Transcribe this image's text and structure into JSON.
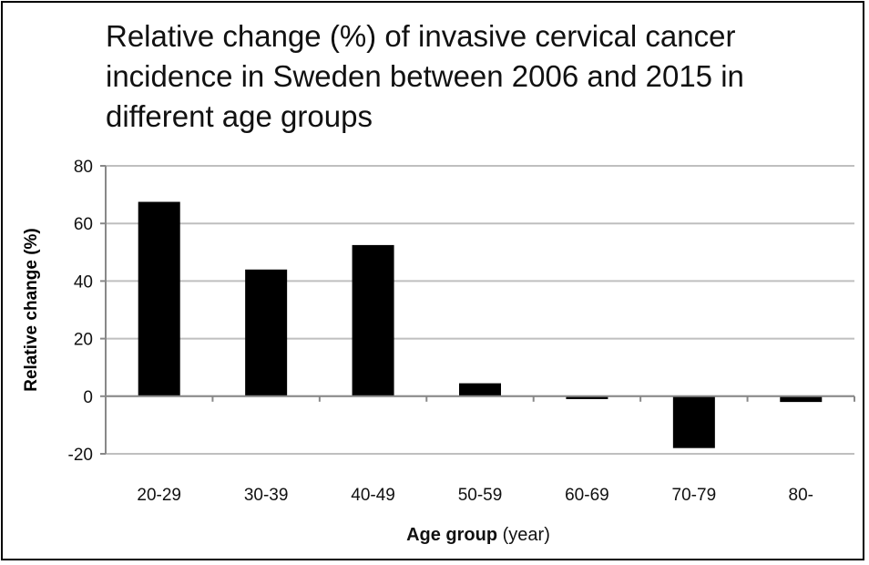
{
  "chart_data": {
    "type": "bar",
    "title": "Relative change (%) of invasive cervical cancer incidence in Sweden between 2006 and 2015 in different age groups",
    "xlabel_bold": "Age group",
    "xlabel_rest": " (year)",
    "ylabel": "Relative change  (%)",
    "categories": [
      "20-29",
      "30-39",
      "40-49",
      "50-59",
      "60-69",
      "70-79",
      "80-"
    ],
    "values": [
      67.5,
      44,
      52.5,
      4.5,
      -1,
      -18,
      -2
    ],
    "ylim": [
      -20,
      80
    ],
    "yticks": [
      -20,
      0,
      20,
      40,
      60,
      80
    ],
    "ytick_labels": [
      "-20",
      "0",
      "20",
      "40",
      "60",
      "80"
    ],
    "grid": true,
    "bar_color": "#000000",
    "grid_color": "#bfbfbf"
  }
}
